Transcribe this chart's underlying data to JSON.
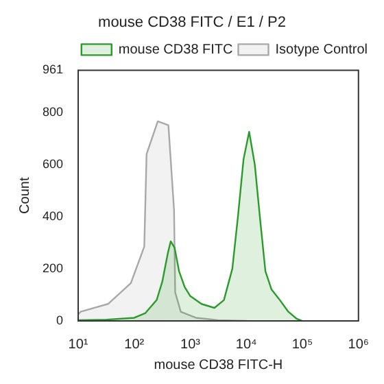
{
  "chart_data": {
    "type": "area",
    "title": "mouse CD38 FITC / E1 / P2",
    "xlabel": "mouse CD38 FITC-H",
    "ylabel": "Count",
    "log": "x",
    "xlim": [
      10,
      1000000
    ],
    "xticks": [
      {
        "value": 10,
        "label": "10¹"
      },
      {
        "value": 100,
        "label": "10²"
      },
      {
        "value": 1000,
        "label": "10³"
      },
      {
        "value": 10000,
        "label": "10⁴"
      },
      {
        "value": 100000,
        "label": "10⁵"
      },
      {
        "value": 1000000,
        "label": "10⁶"
      }
    ],
    "ylim": [
      0,
      961
    ],
    "yticks": [
      0,
      200,
      400,
      600,
      800,
      961
    ],
    "grid": false,
    "legend": "top right",
    "series": [
      {
        "name": "mouse CD38 FITC",
        "color": "#2a9a2a",
        "x": [
          10,
          32,
          100,
          158,
          251,
          316,
          398,
          447,
          525,
          631,
          794,
          1000,
          1585,
          2692,
          3981,
          5623,
          7079,
          8913,
          11220,
          14125,
          17783,
          21878,
          28184,
          38019,
          56234,
          79433,
          100000
        ],
        "values": [
          3,
          5,
          12,
          30,
          80,
          150,
          260,
          305,
          280,
          190,
          130,
          95,
          65,
          50,
          80,
          200,
          400,
          620,
          725,
          600,
          380,
          190,
          120,
          85,
          35,
          8,
          0
        ]
      },
      {
        "name": "Isotype Control",
        "color": "#a8a8a8",
        "x": [
          10,
          11,
          34,
          87,
          151,
          166,
          263,
          407,
          513,
          537,
          676,
          1259,
          3162,
          10000
        ],
        "values": [
          25,
          35,
          65,
          145,
          285,
          640,
          765,
          750,
          425,
          110,
          35,
          12,
          3,
          0
        ]
      }
    ]
  }
}
